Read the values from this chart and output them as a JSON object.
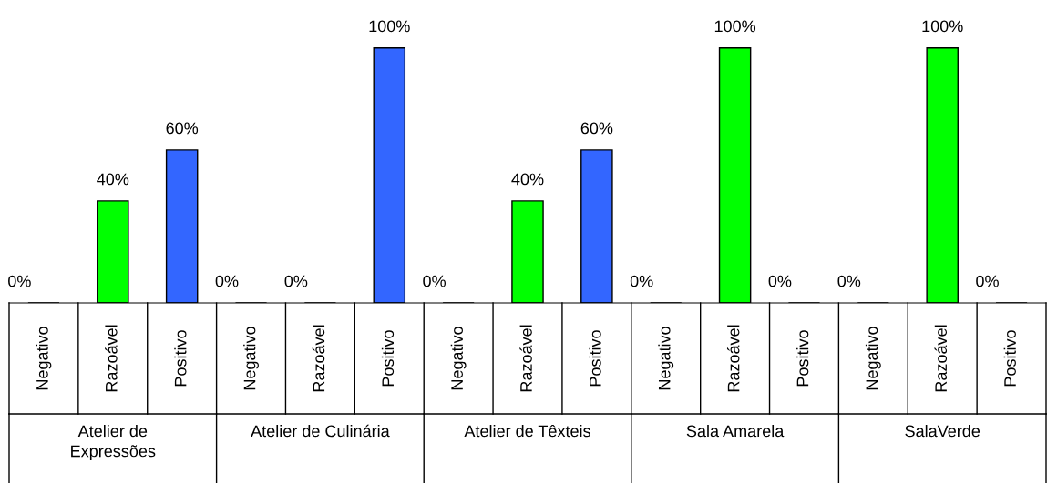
{
  "chart_data": {
    "type": "bar",
    "categories": [
      "Negativo",
      "Razoável",
      "Positivo",
      "Negativo",
      "Razoável",
      "Positivo",
      "Negativo",
      "Razoável",
      "Positivo",
      "Negativo",
      "Razoável",
      "Positivo",
      "Negativo",
      "Razoável",
      "Positivo"
    ],
    "values": [
      0,
      40,
      60,
      0,
      0,
      100,
      0,
      40,
      60,
      0,
      100,
      0,
      0,
      100,
      0
    ],
    "colors": [
      null,
      "#00ff00",
      "#3366ff",
      null,
      null,
      "#3366ff",
      null,
      "#00ff00",
      "#3366ff",
      null,
      "#00ff00",
      null,
      null,
      "#00ff00",
      null
    ],
    "value_labels": [
      "0%",
      "40%",
      "60%",
      "0%",
      "0%",
      "100%",
      "0%",
      "40%",
      "60%",
      "0%",
      "100%",
      "0%",
      "0%",
      "100%",
      "0%"
    ],
    "annotations": [
      "Atelier de\nExpressões",
      "Atelier de Culinária",
      "Atelier de Têxteis",
      "Sala Amarela",
      "SalaVerde"
    ]
  }
}
